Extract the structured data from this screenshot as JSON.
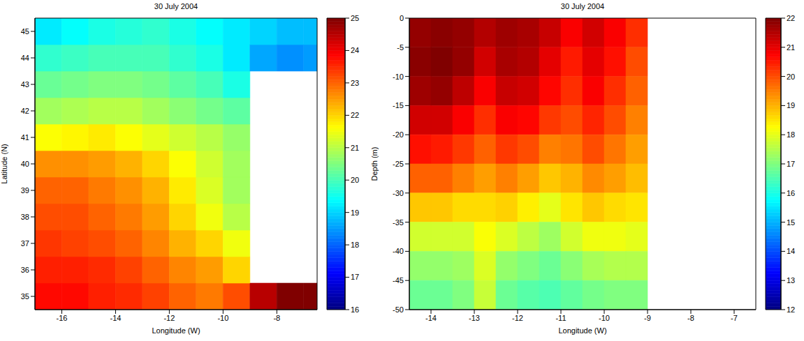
{
  "chart_data": [
    {
      "type": "heatmap",
      "title": "30 July 2004",
      "x_label": "Longitude (W)",
      "y_label": "Latitude (N)",
      "xlim": [
        -17,
        -6.5
      ],
      "xticks": [
        -16,
        -14,
        -12,
        -10,
        -8
      ],
      "ylim": [
        34.5,
        45.5
      ],
      "yticks": [
        35,
        36,
        37,
        38,
        39,
        40,
        41,
        42,
        43,
        44,
        45
      ],
      "x_edges": [
        -17,
        -16,
        -15,
        -14,
        -13,
        -12,
        -11,
        -10,
        -9,
        -8,
        -7,
        -6.5
      ],
      "y_edges": [
        34.5,
        35.5,
        36.5,
        37.5,
        38.5,
        39.5,
        40.5,
        41.5,
        42.5,
        43.5,
        44.5,
        45.5
      ],
      "cells": [
        [
          23.8,
          23.8,
          23.6,
          23.5,
          23.3,
          23,
          22.8,
          23.2,
          24.5,
          25,
          25.2
        ],
        [
          23.6,
          23.6,
          23.5,
          23.3,
          23,
          22.7,
          22.5,
          22,
          null,
          null,
          null
        ],
        [
          23.4,
          23.3,
          23.2,
          23,
          22.7,
          22.3,
          22,
          21.5,
          null,
          null,
          null
        ],
        [
          23.2,
          23.2,
          23,
          22.8,
          22.5,
          22,
          21.5,
          21,
          null,
          null,
          null
        ],
        [
          23,
          23,
          22.8,
          22.6,
          22.3,
          21.8,
          21.3,
          20.8,
          null,
          null,
          null
        ],
        [
          22.6,
          22.6,
          22.5,
          22.3,
          22,
          21.6,
          21.2,
          20.8,
          null,
          null,
          null
        ],
        [
          21.6,
          21.7,
          21.8,
          21.6,
          21.4,
          21.2,
          21,
          20.7,
          null,
          null,
          null
        ],
        [
          20.8,
          20.9,
          21,
          21,
          20.8,
          20.6,
          20.4,
          20.2,
          null,
          null,
          null
        ],
        [
          20.3,
          20.4,
          20.5,
          20.5,
          20.4,
          20.2,
          20,
          19.6,
          null,
          null,
          null
        ],
        [
          19.8,
          19.9,
          20,
          20,
          20,
          19.8,
          19.6,
          19.2,
          18.6,
          18.4,
          18.5
        ],
        [
          19.2,
          19.4,
          19.6,
          19.7,
          19.8,
          19.6,
          19.4,
          19.2,
          19,
          18.8,
          18.8
        ]
      ],
      "colorbar": {
        "range": [
          16,
          25
        ],
        "ticks": [
          16,
          17,
          18,
          19,
          20,
          21,
          22,
          23,
          24,
          25
        ]
      }
    },
    {
      "type": "heatmap",
      "title": "30 July 2004",
      "x_label": "Longitude (W)",
      "y_label": "Depth (m)",
      "xlim": [
        -14.5,
        -6.5
      ],
      "xticks": [
        -14,
        -13,
        -12,
        -11,
        -10,
        -9,
        -8,
        -7
      ],
      "ylim": [
        -50,
        0
      ],
      "yticks": [
        0,
        -5,
        -10,
        -15,
        -20,
        -25,
        -30,
        -35,
        -40,
        -45,
        -50
      ],
      "x_edges": [
        -14.5,
        -14,
        -13.5,
        -13,
        -12.5,
        -12,
        -11.5,
        -11,
        -10.5,
        -10,
        -9.5,
        -9
      ],
      "y_edges": [
        0,
        -5,
        -10,
        -15,
        -20,
        -25,
        -30,
        -35,
        -40,
        -45,
        -50
      ],
      "cells": [
        [
          21.8,
          21.9,
          21.8,
          21.5,
          21.7,
          21.6,
          21.3,
          20.8,
          21.2,
          20.8,
          20.3
        ],
        [
          21.9,
          22,
          21.8,
          21.2,
          21.6,
          21.5,
          21,
          20.5,
          21,
          20.6,
          20
        ],
        [
          21.7,
          21.8,
          21.4,
          20.8,
          21.3,
          21.2,
          20.7,
          20.3,
          20.8,
          20.3,
          19.8
        ],
        [
          21.2,
          21.2,
          20.8,
          20.3,
          20.8,
          20.7,
          20.2,
          20,
          20.4,
          20,
          19.5
        ],
        [
          20.6,
          20.5,
          20.2,
          19.8,
          20.2,
          20,
          19.5,
          19.6,
          20,
          19.6,
          19.2
        ],
        [
          19.8,
          19.8,
          19.5,
          19.2,
          19.5,
          19.2,
          18.8,
          19,
          19.4,
          19.2,
          18.9
        ],
        [
          18.8,
          18.8,
          18.6,
          18.6,
          18.7,
          18.4,
          18,
          18.5,
          18.8,
          18.6,
          18.5
        ],
        [
          17.8,
          17.8,
          17.8,
          18.2,
          17.9,
          17.6,
          17.3,
          17.8,
          18.1,
          18.1,
          18
        ],
        [
          17.2,
          17.2,
          17.3,
          17.9,
          17.2,
          17,
          16.8,
          17.1,
          17.4,
          17.5,
          17.5
        ],
        [
          16.8,
          16.8,
          17,
          17.7,
          16.8,
          16.6,
          16.5,
          16.7,
          16.9,
          17,
          17
        ]
      ],
      "colorbar": {
        "range": [
          12,
          22
        ],
        "ticks": [
          12,
          13,
          14,
          15,
          16,
          17,
          18,
          19,
          20,
          21,
          22
        ]
      }
    }
  ]
}
